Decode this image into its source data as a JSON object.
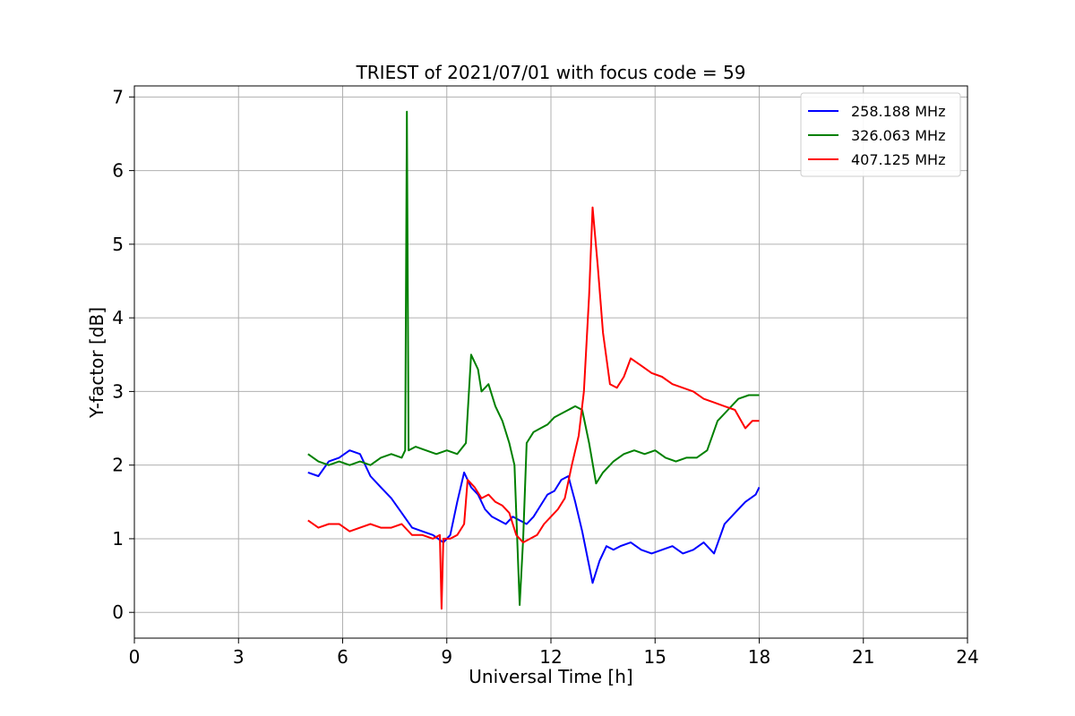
{
  "chart_data": {
    "type": "line",
    "title": "TRIEST of 2021/07/01 with focus code = 59",
    "xlabel": "Universal Time [h]",
    "ylabel": "Y-factor [dB]",
    "xlim": [
      0,
      24
    ],
    "ylim": [
      -0.35,
      7.15
    ],
    "xticks": [
      0,
      3,
      6,
      9,
      12,
      15,
      18,
      21,
      24
    ],
    "yticks": [
      0,
      1,
      2,
      3,
      4,
      5,
      6,
      7
    ],
    "grid": true,
    "legend_position": "top-right",
    "series": [
      {
        "name": "258.188 MHz",
        "color": "#0000ff",
        "x": [
          5.0,
          5.3,
          5.6,
          5.9,
          6.2,
          6.5,
          6.8,
          7.1,
          7.4,
          7.7,
          8.0,
          8.3,
          8.6,
          8.9,
          9.1,
          9.3,
          9.5,
          9.7,
          9.9,
          10.1,
          10.3,
          10.5,
          10.7,
          10.9,
          11.1,
          11.3,
          11.5,
          11.7,
          11.9,
          12.1,
          12.3,
          12.5,
          12.7,
          12.9,
          13.05,
          13.2,
          13.4,
          13.6,
          13.8,
          14.0,
          14.3,
          14.6,
          14.9,
          15.2,
          15.5,
          15.8,
          16.1,
          16.4,
          16.7,
          17.0,
          17.3,
          17.6,
          17.9,
          18.0
        ],
        "y": [
          1.9,
          1.85,
          2.05,
          2.1,
          2.2,
          2.15,
          1.85,
          1.7,
          1.55,
          1.35,
          1.15,
          1.1,
          1.05,
          0.95,
          1.05,
          1.5,
          1.9,
          1.7,
          1.6,
          1.4,
          1.3,
          1.25,
          1.2,
          1.3,
          1.25,
          1.2,
          1.3,
          1.45,
          1.6,
          1.65,
          1.8,
          1.85,
          1.5,
          1.1,
          0.75,
          0.4,
          0.7,
          0.9,
          0.85,
          0.9,
          0.95,
          0.85,
          0.8,
          0.85,
          0.9,
          0.8,
          0.85,
          0.95,
          0.8,
          1.2,
          1.35,
          1.5,
          1.6,
          1.7
        ]
      },
      {
        "name": "326.063 MHz",
        "color": "#008000",
        "x": [
          5.0,
          5.3,
          5.6,
          5.9,
          6.2,
          6.5,
          6.8,
          7.1,
          7.4,
          7.7,
          7.8,
          7.85,
          7.9,
          8.1,
          8.4,
          8.7,
          9.0,
          9.3,
          9.55,
          9.7,
          9.9,
          10.0,
          10.2,
          10.4,
          10.6,
          10.8,
          10.95,
          11.1,
          11.2,
          11.3,
          11.5,
          11.7,
          11.9,
          12.1,
          12.3,
          12.5,
          12.7,
          12.9,
          13.1,
          13.3,
          13.5,
          13.8,
          14.1,
          14.4,
          14.7,
          15.0,
          15.3,
          15.6,
          15.9,
          16.2,
          16.5,
          16.8,
          17.1,
          17.4,
          17.7,
          18.0
        ],
        "y": [
          2.15,
          2.05,
          2.0,
          2.05,
          2.0,
          2.05,
          2.0,
          2.1,
          2.15,
          2.1,
          2.2,
          6.8,
          2.2,
          2.25,
          2.2,
          2.15,
          2.2,
          2.15,
          2.3,
          3.5,
          3.3,
          3.0,
          3.1,
          2.8,
          2.6,
          2.3,
          2.0,
          0.1,
          1.0,
          2.3,
          2.45,
          2.5,
          2.55,
          2.65,
          2.7,
          2.75,
          2.8,
          2.75,
          2.3,
          1.75,
          1.9,
          2.05,
          2.15,
          2.2,
          2.15,
          2.2,
          2.1,
          2.05,
          2.1,
          2.1,
          2.2,
          2.6,
          2.75,
          2.9,
          2.95,
          2.95
        ]
      },
      {
        "name": "407.125 MHz",
        "color": "#ff0000",
        "x": [
          5.0,
          5.3,
          5.6,
          5.9,
          6.2,
          6.5,
          6.8,
          7.1,
          7.4,
          7.7,
          8.0,
          8.3,
          8.6,
          8.8,
          8.85,
          8.9,
          9.1,
          9.3,
          9.5,
          9.6,
          9.8,
          10.0,
          10.2,
          10.4,
          10.6,
          10.8,
          11.0,
          11.2,
          11.4,
          11.6,
          11.8,
          12.0,
          12.2,
          12.4,
          12.6,
          12.8,
          12.95,
          13.1,
          13.2,
          13.35,
          13.5,
          13.7,
          13.9,
          14.1,
          14.3,
          14.6,
          14.9,
          15.2,
          15.5,
          15.8,
          16.1,
          16.4,
          16.7,
          17.0,
          17.3,
          17.6,
          17.8,
          18.0
        ],
        "y": [
          1.25,
          1.15,
          1.2,
          1.2,
          1.1,
          1.15,
          1.2,
          1.15,
          1.15,
          1.2,
          1.05,
          1.05,
          1.0,
          1.05,
          0.05,
          1.0,
          1.0,
          1.05,
          1.2,
          1.8,
          1.7,
          1.55,
          1.6,
          1.5,
          1.45,
          1.35,
          1.05,
          0.95,
          1.0,
          1.05,
          1.2,
          1.3,
          1.4,
          1.55,
          2.0,
          2.4,
          3.0,
          4.3,
          5.5,
          4.7,
          3.8,
          3.1,
          3.05,
          3.2,
          3.45,
          3.35,
          3.25,
          3.2,
          3.1,
          3.05,
          3.0,
          2.9,
          2.85,
          2.8,
          2.75,
          2.5,
          2.6,
          2.6
        ]
      }
    ]
  }
}
